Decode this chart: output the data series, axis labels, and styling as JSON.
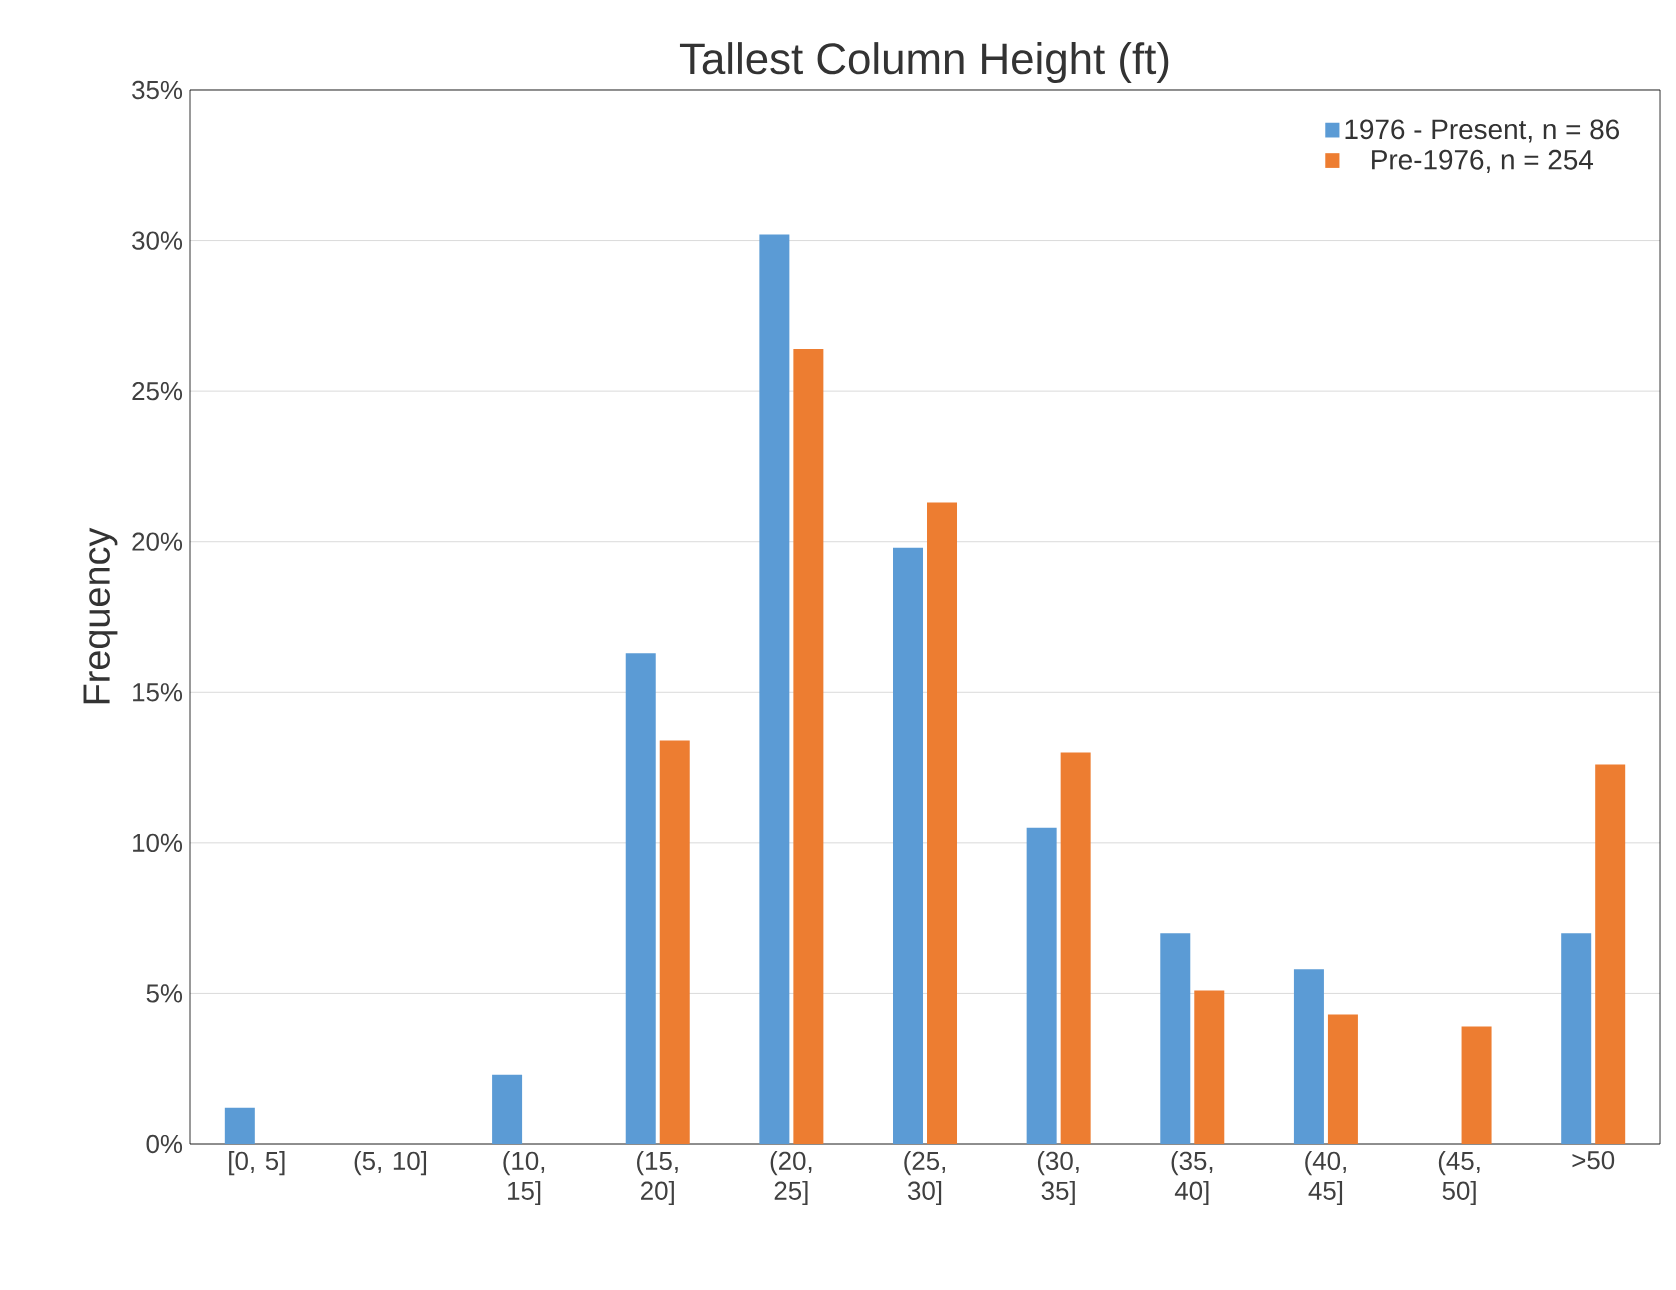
{
  "chart_data": {
    "type": "bar",
    "title": "Tallest Column Height (ft)",
    "ylabel": "Frequency",
    "categories": [
      "[0, 5]",
      "(5, 10]",
      "(10, 15]",
      "(15, 20]",
      "(20, 25]",
      "(25, 30]",
      "(30, 35]",
      "(35, 40]",
      "(40, 45]",
      "(45, 50]",
      ">50"
    ],
    "series": [
      {
        "name": "1976 - Present, n = 86",
        "color": "#5b9bd5",
        "values": [
          1.2,
          0,
          2.3,
          16.3,
          30.2,
          19.8,
          10.5,
          7.0,
          5.8,
          0,
          7.0
        ]
      },
      {
        "name": "Pre-1976, n = 254",
        "color": "#ed7d31",
        "values": [
          0,
          0,
          0,
          13.4,
          26.4,
          21.3,
          13.0,
          5.1,
          4.3,
          3.9,
          12.6
        ]
      }
    ],
    "ylim": [
      0,
      35
    ],
    "yticks": [
      {
        "value": 0,
        "label": "0%"
      },
      {
        "value": 5,
        "label": "5%"
      },
      {
        "value": 10,
        "label": "10%"
      },
      {
        "value": 15,
        "label": "15%"
      },
      {
        "value": 20,
        "label": "20%"
      },
      {
        "value": 25,
        "label": "25%"
      },
      {
        "value": 30,
        "label": "30%"
      },
      {
        "value": 35,
        "label": "35%"
      }
    ],
    "grid": "y",
    "legend": "top right"
  }
}
